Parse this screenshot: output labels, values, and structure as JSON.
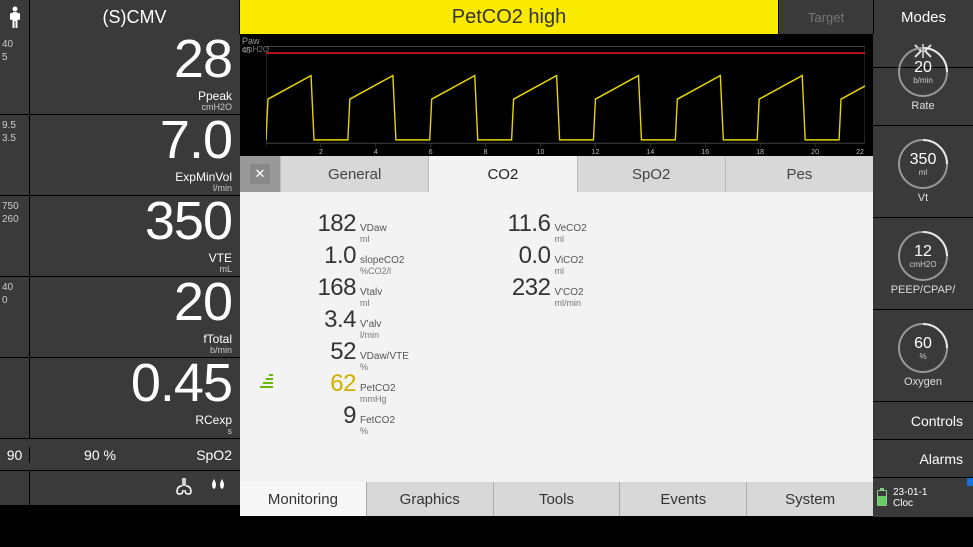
{
  "top": {
    "mode": "(S)CMV",
    "alarm": "PetCO2 high",
    "target": "Target",
    "modes": "Modes"
  },
  "left_params": [
    {
      "hi": "40",
      "lo": "5",
      "value": "28",
      "label": "Ppeak",
      "unit": "cmH2O"
    },
    {
      "hi": "9.5",
      "lo": "3.5",
      "value": "7.0",
      "label": "ExpMinVol",
      "unit": "l/min"
    },
    {
      "hi": "750",
      "lo": "260",
      "value": "350",
      "label": "VTE",
      "unit": "mL"
    },
    {
      "hi": "40",
      "lo": "0",
      "value": "20",
      "label": "fTotal",
      "unit": "b/min"
    },
    {
      "hi": "",
      "lo": "",
      "value": "0.45",
      "label": "RCexp",
      "unit": "s"
    }
  ],
  "spo2": {
    "lo": "90",
    "val": "90 %",
    "label": "SpO2"
  },
  "dials": [
    {
      "val": "20",
      "unit": "b/min",
      "label": "Rate"
    },
    {
      "val": "350",
      "unit": "ml",
      "label": "Vt"
    },
    {
      "val": "12",
      "unit": "cmH2O",
      "label": "PEEP/CPAP/"
    },
    {
      "val": "60",
      "unit": "%",
      "label": "Oxygen"
    }
  ],
  "right_buttons": {
    "controls": "Controls",
    "alarms": "Alarms"
  },
  "clock": {
    "date": "23-01-1",
    "label": "Cloc"
  },
  "graph": {
    "ylabel": "Paw",
    "yunit": "cmH2O",
    "ymax": "45",
    "xticks": [
      "2",
      "4",
      "6",
      "8",
      "10",
      "12",
      "14",
      "16",
      "18",
      "20",
      "22"
    ],
    "alarm_line_color": "#ff2020",
    "wave_color": "#e6d400"
  },
  "tabs": [
    "General",
    "CO2",
    "SpO2",
    "Pes"
  ],
  "tabs_active": 1,
  "panel": {
    "col1": [
      {
        "val": "182",
        "label": "VDaw",
        "unit": "ml"
      },
      {
        "val": "1.0",
        "label": "slopeCO2",
        "unit": "%CO2/l"
      },
      {
        "val": "168",
        "label": "Vtalv",
        "unit": "ml"
      },
      {
        "val": "3.4",
        "label": "V'alv",
        "unit": "l/min"
      },
      {
        "val": "52",
        "label": "VDaw/VTE",
        "unit": "%"
      },
      {
        "val": "62",
        "label": "PetCO2",
        "unit": "mmHg",
        "highlight": true
      },
      {
        "val": "9",
        "label": "FetCO2",
        "unit": "%"
      }
    ],
    "col2": [
      {
        "val": "11.6",
        "label": "VeCO2",
        "unit": "ml"
      },
      {
        "val": "0.0",
        "label": "ViCO2",
        "unit": "ml"
      },
      {
        "val": "232",
        "label": "V'CO2",
        "unit": "ml/min"
      }
    ]
  },
  "bottom_tabs": [
    "Monitoring",
    "Graphics",
    "Tools",
    "Events",
    "System"
  ],
  "bottom_active": 0
}
